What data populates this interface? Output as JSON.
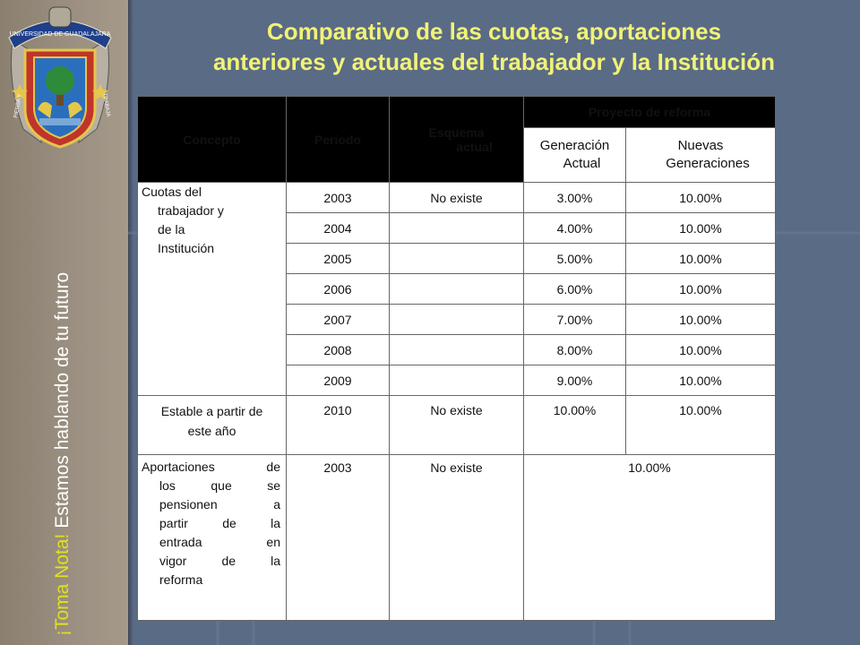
{
  "sidebar": {
    "tagline_prefix": "¡Toma Nota!",
    "tagline_rest": " Estamos hablando de tu futuro",
    "logo": {
      "icon": "university-crest-icon",
      "ribbon_text": "UNIVERSIDAD DE GUADALAJARA",
      "left_motto": "PIENSA Y",
      "right_motto": "TRABAJA"
    }
  },
  "title": {
    "line1": "Comparativo de las cuotas, aportaciones",
    "line2": "anteriores y actuales del trabajador y la Institución"
  },
  "table": {
    "headers": {
      "concepto": "Concepto",
      "periodo": "Periodo",
      "esquema_l1": "Esquema",
      "esquema_l2": "actual",
      "proyecto": "Proyecto de reforma",
      "gen_actual_l1": "Generación",
      "gen_actual_l2": "Actual",
      "nuevas_l1": "Nuevas",
      "nuevas_l2": "Generaciones"
    },
    "group1": {
      "concepto_lines": [
        "Cuotas del",
        "trabajador y",
        "de la",
        "Institución"
      ],
      "rows": [
        {
          "periodo": "2003",
          "esquema": "No existe",
          "gen_actual": "3.00%",
          "nuevas": "10.00%"
        },
        {
          "periodo": "2004",
          "esquema": "",
          "gen_actual": "4.00%",
          "nuevas": "10.00%"
        },
        {
          "periodo": "2005",
          "esquema": "",
          "gen_actual": "5.00%",
          "nuevas": "10.00%"
        },
        {
          "periodo": "2006",
          "esquema": "",
          "gen_actual": "6.00%",
          "nuevas": "10.00%"
        },
        {
          "periodo": "2007",
          "esquema": "",
          "gen_actual": "7.00%",
          "nuevas": "10.00%"
        },
        {
          "periodo": "2008",
          "esquema": "",
          "gen_actual": "8.00%",
          "nuevas": "10.00%"
        },
        {
          "periodo": "2009",
          "esquema": "",
          "gen_actual": "9.00%",
          "nuevas": "10.00%"
        }
      ]
    },
    "group2": {
      "concepto_l1": "Estable a partir de",
      "concepto_l2": "este año",
      "periodo": "2010",
      "esquema": "No existe",
      "gen_actual": "10.00%",
      "nuevas": "10.00%"
    },
    "group3": {
      "concepto_lines": [
        "Aportaciones de",
        "los que se",
        "pensionen a",
        "partir de la",
        "entrada en",
        "vigor de la",
        "reforma"
      ],
      "periodo": "2003",
      "esquema": "No existe",
      "merged": "10.00%"
    }
  },
  "colors": {
    "background": "#5a6b85",
    "sidebar": "#9a8f80",
    "title": "#f2f276",
    "header": "#000000",
    "tagline_highlight": "#e0e020"
  }
}
